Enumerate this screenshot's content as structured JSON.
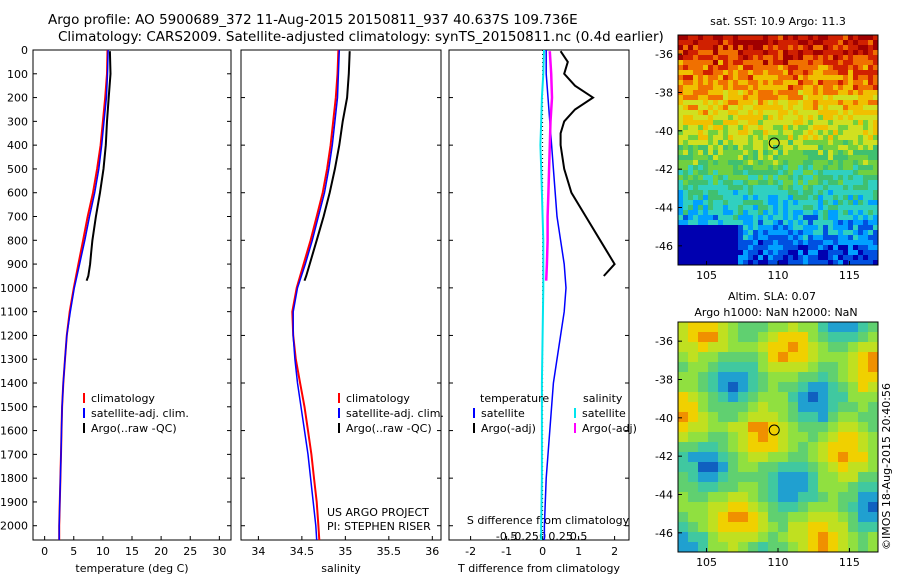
{
  "header": {
    "line1": "Argo profile: AO 5900689_372 11-Aug-2015 20150811_937 40.637S 109.736E",
    "line2": "Climatology: CARS2009. Satellite-adjusted climatology: synTS_20150811.nc (0.4d earlier)"
  },
  "footer_credit": "©IMOS 18-Aug-2015 20:40:56",
  "project_text": [
    "US ARGO PROJECT",
    "PI: STEPHEN RISER"
  ],
  "colors": {
    "climatology": "#ff0000",
    "satellite": "#0000ff",
    "argo": "#000000",
    "sat_salinity": "#00e5ee",
    "argo_salinity": "#ff00ff"
  },
  "chart_data": [
    {
      "type": "line",
      "id": "temperature",
      "xlabel": "temperature (deg C)",
      "ylabel": "",
      "xlim": [
        -2,
        32
      ],
      "ylim": [
        0,
        2060
      ],
      "xticks": [
        0,
        5,
        10,
        15,
        20,
        25,
        30
      ],
      "yticks": [
        0,
        100,
        200,
        300,
        400,
        500,
        600,
        700,
        800,
        900,
        1000,
        1100,
        1200,
        1300,
        1400,
        1500,
        1600,
        1700,
        1800,
        1900,
        2000
      ],
      "legend": [
        "climatology",
        "satellite-adj. clim.",
        "Argo(..raw -QC)"
      ],
      "series": [
        {
          "name": "climatology",
          "depth": [
            0,
            100,
            200,
            300,
            400,
            500,
            600,
            700,
            800,
            900,
            1000,
            1100,
            1200,
            1300,
            1400,
            1500,
            1600,
            1700,
            1800,
            1900,
            2000,
            2060
          ],
          "values": [
            10.8,
            10.7,
            10.4,
            10.0,
            9.6,
            9.0,
            8.3,
            7.4,
            6.6,
            5.8,
            5.0,
            4.3,
            3.8,
            3.5,
            3.2,
            3.0,
            2.9,
            2.8,
            2.7,
            2.6,
            2.5,
            2.5
          ]
        },
        {
          "name": "satellite-adj. clim.",
          "depth": [
            0,
            100,
            200,
            300,
            400,
            500,
            600,
            700,
            800,
            900,
            1000,
            1100,
            1200,
            1300,
            1400,
            1500,
            1600,
            1700,
            1800,
            1900,
            2000,
            2060
          ],
          "values": [
            10.9,
            10.8,
            10.6,
            10.2,
            9.8,
            9.3,
            8.6,
            7.7,
            6.9,
            6.0,
            5.1,
            4.4,
            3.8,
            3.5,
            3.2,
            3.0,
            2.9,
            2.8,
            2.7,
            2.6,
            2.5,
            2.5
          ]
        },
        {
          "name": "Argo(..raw -QC)",
          "depth": [
            5,
            100,
            200,
            300,
            400,
            500,
            600,
            700,
            800,
            850,
            900,
            950,
            970
          ],
          "values": [
            11.2,
            11.3,
            11.0,
            10.7,
            10.5,
            10.1,
            9.5,
            8.8,
            8.2,
            8.0,
            7.8,
            7.5,
            7.2
          ]
        }
      ]
    },
    {
      "type": "line",
      "id": "salinity",
      "xlabel": "salinity",
      "ylabel": "",
      "xlim": [
        33.8,
        36.1
      ],
      "ylim": [
        0,
        2060
      ],
      "xticks": [
        34,
        34.5,
        35,
        35.5,
        36
      ],
      "legend": [
        "climatology",
        "satellite-adj. clim.",
        "Argo(..raw -QC)"
      ],
      "series": [
        {
          "name": "climatology",
          "depth": [
            0,
            100,
            200,
            300,
            400,
            500,
            600,
            700,
            800,
            900,
            1000,
            1100,
            1200,
            1300,
            1400,
            1500,
            1600,
            1700,
            1800,
            1900,
            2000,
            2060
          ],
          "values": [
            34.92,
            34.91,
            34.89,
            34.86,
            34.83,
            34.79,
            34.74,
            34.67,
            34.6,
            34.52,
            34.44,
            34.39,
            34.4,
            34.43,
            34.48,
            34.53,
            34.57,
            34.61,
            34.64,
            34.67,
            34.69,
            34.7
          ]
        },
        {
          "name": "satellite-adj. clim.",
          "depth": [
            0,
            100,
            200,
            300,
            400,
            500,
            600,
            700,
            800,
            900,
            1000,
            1100,
            1200,
            1300,
            1400,
            1500,
            1600,
            1700,
            1800,
            1900,
            2000,
            2060
          ],
          "values": [
            34.93,
            34.92,
            34.91,
            34.88,
            34.85,
            34.81,
            34.76,
            34.69,
            34.62,
            34.54,
            34.45,
            34.4,
            34.4,
            34.42,
            34.45,
            34.49,
            34.53,
            34.57,
            34.6,
            34.63,
            34.66,
            34.67
          ]
        },
        {
          "name": "Argo(..raw -QC)",
          "depth": [
            5,
            100,
            200,
            300,
            400,
            500,
            600,
            700,
            800,
            850,
            900,
            950,
            970
          ],
          "values": [
            35.05,
            35.04,
            35.02,
            34.97,
            34.93,
            34.88,
            34.82,
            34.75,
            34.67,
            34.63,
            34.59,
            34.55,
            34.53
          ]
        }
      ]
    },
    {
      "type": "line",
      "id": "difference",
      "xlabel": "T difference from climatology",
      "xlabel_top": "S difference from climatology",
      "xlim": [
        -2.6,
        2.4
      ],
      "ylim": [
        0,
        2060
      ],
      "xticks": [
        -2,
        -1,
        0,
        1,
        2
      ],
      "sticks": [
        -0.5,
        -0.25,
        0,
        0.25,
        0.5
      ],
      "legend_headers": [
        "temperature",
        "salinity"
      ],
      "legend": [
        "satellite",
        "Argo(-adj)",
        "satellite",
        "Argo(-adj)"
      ],
      "series": [
        {
          "name": "T satellite",
          "depth": [
            0,
            100,
            200,
            300,
            400,
            500,
            600,
            700,
            800,
            900,
            1000,
            1100,
            1200,
            1400,
            1600,
            1800,
            2000,
            2060
          ],
          "values": [
            0.1,
            0.1,
            0.15,
            0.2,
            0.25,
            0.3,
            0.35,
            0.4,
            0.5,
            0.6,
            0.65,
            0.6,
            0.5,
            0.3,
            0.2,
            0.1,
            0.05,
            0.05
          ]
        },
        {
          "name": "T Argo(-adj)",
          "depth": [
            5,
            50,
            100,
            150,
            200,
            250,
            300,
            350,
            400,
            500,
            600,
            700,
            800,
            850,
            900,
            950
          ],
          "values": [
            0.5,
            0.7,
            0.6,
            0.9,
            1.4,
            0.9,
            0.6,
            0.5,
            0.5,
            0.6,
            0.8,
            1.2,
            1.6,
            1.8,
            2.0,
            1.7
          ]
        },
        {
          "name": "S satellite",
          "depth": [
            0,
            100,
            200,
            300,
            400,
            500,
            600,
            700,
            800,
            1000,
            1200,
            1400,
            1600,
            1800,
            2000,
            2060
          ],
          "values": [
            0.02,
            0.01,
            -0.01,
            -0.02,
            -0.03,
            -0.02,
            -0.01,
            0,
            0.01,
            0.01,
            0,
            -0.01,
            -0.01,
            -0.01,
            -0.02,
            -0.02
          ]
        },
        {
          "name": "S Argo(-adj)",
          "depth": [
            5,
            100,
            200,
            300,
            400,
            500,
            600,
            700,
            800,
            900,
            970
          ],
          "values": [
            0.1,
            0.12,
            0.13,
            0.11,
            0.1,
            0.09,
            0.08,
            0.07,
            0.07,
            0.06,
            0.05
          ]
        }
      ]
    },
    {
      "type": "heatmap",
      "id": "sst-map",
      "title": "sat. SST: 10.9 Argo: 11.3",
      "xlim": [
        103,
        117
      ],
      "ylim": [
        -47,
        -35
      ],
      "xticks": [
        105,
        110,
        115
      ],
      "yticks": [
        -36,
        -38,
        -40,
        -42,
        -44,
        -46
      ],
      "marker": {
        "lon": 109.736,
        "lat": -40.637
      }
    },
    {
      "type": "heatmap",
      "id": "sla-map",
      "title": "Altim. SLA: 0.07",
      "subtitle": "Argo h1000: NaN h2000: NaN",
      "xlim": [
        103,
        117
      ],
      "ylim": [
        -47,
        -35
      ],
      "xticks": [
        105,
        110,
        115
      ],
      "yticks": [
        -36,
        -38,
        -40,
        -42,
        -44,
        -46
      ],
      "marker": {
        "lon": 109.736,
        "lat": -40.637
      }
    }
  ]
}
